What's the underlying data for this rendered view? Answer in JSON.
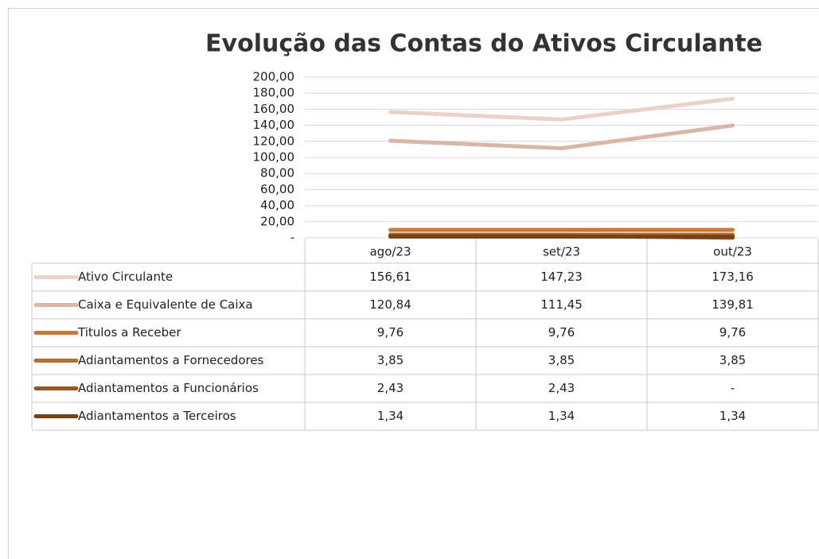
{
  "chart_data": {
    "type": "line",
    "title": "Evolução das Contas do Ativos Circulante",
    "categories": [
      "ago/23",
      "set/23",
      "out/23"
    ],
    "ylim": [
      0,
      200
    ],
    "yticks": [
      {
        "value": 0,
        "label": "-"
      },
      {
        "value": 20,
        "label": "20,00"
      },
      {
        "value": 40,
        "label": "40,00"
      },
      {
        "value": 60,
        "label": "60,00"
      },
      {
        "value": 80,
        "label": "80,00"
      },
      {
        "value": 100,
        "label": "100,00"
      },
      {
        "value": 120,
        "label": "120,00"
      },
      {
        "value": 140,
        "label": "140,00"
      },
      {
        "value": 160,
        "label": "160,00"
      },
      {
        "value": 180,
        "label": "180,00"
      },
      {
        "value": 200,
        "label": "200,00"
      }
    ],
    "grid": true,
    "series": [
      {
        "name": "Ativo Circulante",
        "color": "#e9d2c8",
        "values": [
          156.61,
          147.23,
          173.16
        ],
        "value_labels": [
          "156,61",
          "147,23",
          "173,16"
        ]
      },
      {
        "name": "Caixa e Equivalente de Caixa",
        "color": "#d8b7a6",
        "values": [
          120.84,
          111.45,
          139.81
        ],
        "value_labels": [
          "120,84",
          "111,45",
          "139,81"
        ]
      },
      {
        "name": "Titulos a Receber",
        "color": "#c77a36",
        "values": [
          9.76,
          9.76,
          9.76
        ],
        "value_labels": [
          "9,76",
          "9,76",
          "9,76"
        ]
      },
      {
        "name": "Adiantamentos a Fornecedores",
        "color": "#b56c2c",
        "values": [
          3.85,
          3.85,
          3.85
        ],
        "value_labels": [
          "3,85",
          "3,85",
          "3,85"
        ]
      },
      {
        "name": "Adiantamentos a Funcionários",
        "color": "#965822",
        "values": [
          2.43,
          2.43,
          0
        ],
        "value_labels": [
          "2,43",
          "2,43",
          "-"
        ]
      },
      {
        "name": "Adiantamentos a Terceiros",
        "color": "#74421a",
        "values": [
          1.34,
          1.34,
          1.34
        ],
        "value_labels": [
          "1,34",
          "1,34",
          "1,34"
        ]
      }
    ]
  }
}
